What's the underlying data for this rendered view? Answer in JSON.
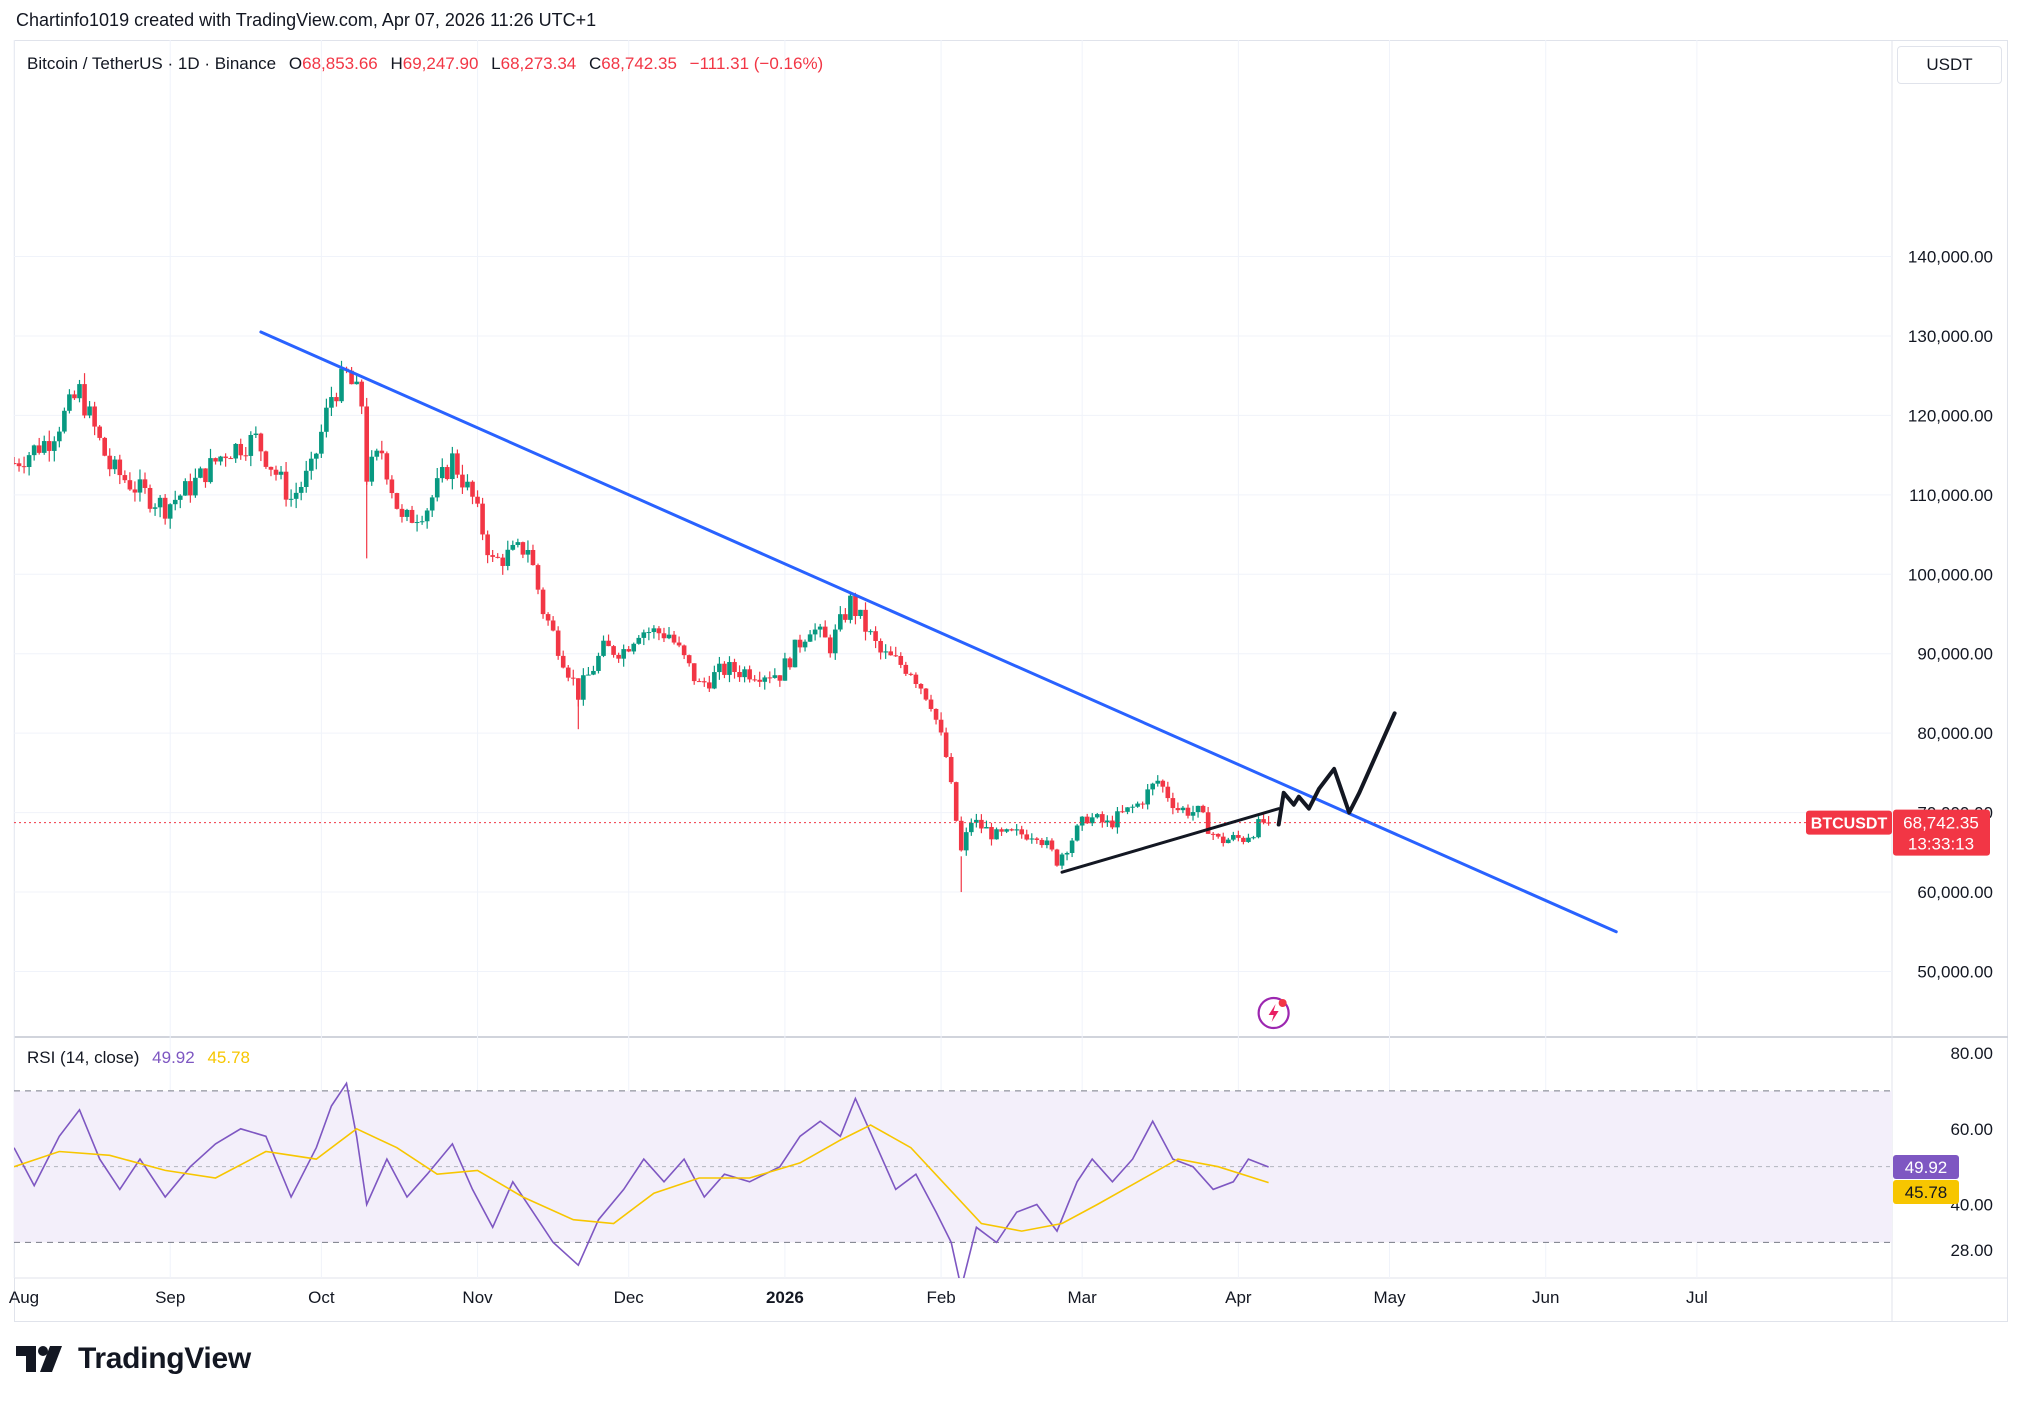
{
  "header": {
    "credit": "Chartinfo1019 created with TradingView.com, Apr 07, 2026 11:26 UTC+1"
  },
  "legend": {
    "symbol": "Bitcoin / TetherUS · 1D · Binance",
    "open_label": "O",
    "open": "68,853.66",
    "high_label": "H",
    "high": "69,247.90",
    "low_label": "L",
    "low": "68,273.34",
    "close_label": "C",
    "close": "68,742.35",
    "change": "−111.31 (−0.16%)"
  },
  "currency_button": "USDT",
  "rsi_legend": {
    "name": "RSI (14, close)",
    "rsi": "49.92",
    "ma": "45.78"
  },
  "badges": {
    "ticker": "BTCUSDT",
    "price": "68,742.35",
    "countdown": "13:33:13",
    "rsi": "49.92",
    "rsi_ma": "45.78"
  },
  "brand": "TradingView",
  "colors": {
    "up": "#089981",
    "down": "#f23645",
    "trendline": "#2962ff",
    "rsi": "#7e57c2",
    "rsi_ma": "#f7c600",
    "rsi_band": "#f3effa"
  },
  "icons": {
    "flash": "flash-icon",
    "brand_logo": "tradingview-logo-icon"
  },
  "chart_data": [
    {
      "type": "candlestick",
      "symbol": "BTCUSDT",
      "interval": "1D",
      "y_axis": {
        "ticks": [
          "50,000.00",
          "60,000.00",
          "70,000.00",
          "80,000.00",
          "90,000.00",
          "100,000.00",
          "110,000.00",
          "120,000.00",
          "130,000.00",
          "140,000.00"
        ],
        "ylim": [
          45000,
          150000
        ],
        "side": "right"
      },
      "x_axis": {
        "ticks": [
          "Aug",
          "Sep",
          "Oct",
          "Nov",
          "Dec",
          "2026",
          "Feb",
          "Mar",
          "Apr",
          "May",
          "Jun",
          "Jul"
        ],
        "range": [
          "2025-08-01",
          "2026-07-31"
        ]
      },
      "price_anchors": [
        [
          "2025-08-01",
          114000
        ],
        [
          "2025-08-08",
          117000
        ],
        [
          "2025-08-14",
          123000
        ],
        [
          "2025-08-20",
          113500
        ],
        [
          "2025-08-26",
          110500
        ],
        [
          "2025-08-31",
          108500
        ],
        [
          "2025-09-05",
          111000
        ],
        [
          "2025-09-12",
          115500
        ],
        [
          "2025-09-18",
          117000
        ],
        [
          "2025-09-25",
          109500
        ],
        [
          "2025-09-29",
          113000
        ],
        [
          "2025-10-03",
          122500
        ],
        [
          "2025-10-06",
          125000
        ],
        [
          "2025-10-09",
          121500
        ],
        [
          "2025-10-10",
          112500
        ],
        [
          "2025-10-13",
          115500
        ],
        [
          "2025-10-17",
          106500
        ],
        [
          "2025-10-22",
          108500
        ],
        [
          "2025-10-27",
          114500
        ],
        [
          "2025-10-31",
          109500
        ],
        [
          "2025-11-04",
          101500
        ],
        [
          "2025-11-11",
          103500
        ],
        [
          "2025-11-14",
          95500
        ],
        [
          "2025-11-21",
          85000
        ],
        [
          "2025-11-26",
          90500
        ],
        [
          "2025-11-30",
          90500
        ],
        [
          "2025-12-03",
          93000
        ],
        [
          "2025-12-09",
          92500
        ],
        [
          "2025-12-15",
          86000
        ],
        [
          "2025-12-20",
          88000
        ],
        [
          "2025-12-31",
          87500
        ],
        [
          "2026-01-06",
          93500
        ],
        [
          "2026-01-10",
          91000
        ],
        [
          "2026-01-14",
          96500
        ],
        [
          "2026-01-20",
          90000
        ],
        [
          "2026-01-26",
          88000
        ],
        [
          "2026-01-30",
          84000
        ],
        [
          "2026-02-02",
          77000
        ],
        [
          "2026-02-05",
          65000
        ],
        [
          "2026-02-07",
          69000
        ],
        [
          "2026-02-12",
          67000
        ],
        [
          "2026-02-20",
          67500
        ],
        [
          "2026-02-24",
          64000
        ],
        [
          "2026-03-02",
          69500
        ],
        [
          "2026-03-06",
          68500
        ],
        [
          "2026-03-12",
          71000
        ],
        [
          "2026-03-16",
          74000
        ],
        [
          "2026-03-20",
          70500
        ],
        [
          "2026-03-24",
          70000
        ],
        [
          "2026-03-28",
          66500
        ],
        [
          "2026-04-02",
          66800
        ],
        [
          "2026-04-06",
          68800
        ],
        [
          "2026-04-07",
          68742.35
        ]
      ],
      "last_close": 68742.35,
      "annotations": [
        {
          "kind": "trendline",
          "color": "#2962ff",
          "from": [
            "2025-09-19",
            130500
          ],
          "to": [
            "2026-06-15",
            55000
          ]
        },
        {
          "kind": "trendline",
          "color": "#131722",
          "from": [
            "2026-02-25",
            62500
          ],
          "to": [
            "2026-04-09",
            70500
          ]
        },
        {
          "kind": "freehand",
          "color": "#131722",
          "points": [
            [
              "2026-04-09",
              68500
            ],
            [
              "2026-04-10",
              72500
            ],
            [
              "2026-04-12",
              71000
            ],
            [
              "2026-04-13",
              72000
            ],
            [
              "2026-04-15",
              70500
            ],
            [
              "2026-04-17",
              73000
            ],
            [
              "2026-04-20",
              75500
            ],
            [
              "2026-04-23",
              70000
            ],
            [
              "2026-04-25",
              72500
            ],
            [
              "2026-05-02",
              82500
            ]
          ]
        }
      ]
    },
    {
      "type": "line",
      "name": "RSI (14, close)",
      "y_axis": {
        "ticks": [
          "28.00",
          "40.00",
          "60.00",
          "80.00"
        ],
        "ylim": [
          28,
          80
        ],
        "bands": [
          30,
          70
        ]
      },
      "series": [
        {
          "name": "RSI",
          "color": "#7e57c2",
          "last": 49.92,
          "points": [
            [
              "2025-08-01",
              55
            ],
            [
              "2025-08-05",
              45
            ],
            [
              "2025-08-10",
              58
            ],
            [
              "2025-08-14",
              65
            ],
            [
              "2025-08-18",
              52
            ],
            [
              "2025-08-22",
              44
            ],
            [
              "2025-08-26",
              52
            ],
            [
              "2025-08-31",
              42
            ],
            [
              "2025-09-05",
              50
            ],
            [
              "2025-09-10",
              56
            ],
            [
              "2025-09-15",
              60
            ],
            [
              "2025-09-20",
              58
            ],
            [
              "2025-09-25",
              42
            ],
            [
              "2025-09-30",
              55
            ],
            [
              "2025-10-03",
              66
            ],
            [
              "2025-10-06",
              72
            ],
            [
              "2025-10-08",
              58
            ],
            [
              "2025-10-10",
              40
            ],
            [
              "2025-10-14",
              52
            ],
            [
              "2025-10-18",
              42
            ],
            [
              "2025-10-22",
              48
            ],
            [
              "2025-10-27",
              56
            ],
            [
              "2025-10-31",
              44
            ],
            [
              "2025-11-04",
              34
            ],
            [
              "2025-11-08",
              46
            ],
            [
              "2025-11-12",
              38
            ],
            [
              "2025-11-16",
              30
            ],
            [
              "2025-11-21",
              24
            ],
            [
              "2025-11-25",
              36
            ],
            [
              "2025-11-30",
              44
            ],
            [
              "2025-12-04",
              52
            ],
            [
              "2025-12-08",
              46
            ],
            [
              "2025-12-12",
              52
            ],
            [
              "2025-12-16",
              42
            ],
            [
              "2025-12-20",
              48
            ],
            [
              "2025-12-25",
              46
            ],
            [
              "2025-12-31",
              50
            ],
            [
              "2026-01-04",
              58
            ],
            [
              "2026-01-08",
              62
            ],
            [
              "2026-01-12",
              58
            ],
            [
              "2026-01-15",
              68
            ],
            [
              "2026-01-19",
              56
            ],
            [
              "2026-01-23",
              44
            ],
            [
              "2026-01-27",
              48
            ],
            [
              "2026-01-31",
              38
            ],
            [
              "2026-02-03",
              30
            ],
            [
              "2026-02-05",
              18
            ],
            [
              "2026-02-08",
              34
            ],
            [
              "2026-02-12",
              30
            ],
            [
              "2026-02-16",
              38
            ],
            [
              "2026-02-20",
              40
            ],
            [
              "2026-02-24",
              33
            ],
            [
              "2026-02-28",
              46
            ],
            [
              "2026-03-03",
              52
            ],
            [
              "2026-03-07",
              46
            ],
            [
              "2026-03-11",
              52
            ],
            [
              "2026-03-15",
              62
            ],
            [
              "2026-03-19",
              52
            ],
            [
              "2026-03-23",
              50
            ],
            [
              "2026-03-27",
              44
            ],
            [
              "2026-03-31",
              46
            ],
            [
              "2026-04-03",
              52
            ],
            [
              "2026-04-07",
              49.92
            ]
          ]
        },
        {
          "name": "RSI-based MA",
          "color": "#f7c600",
          "last": 45.78,
          "points": [
            [
              "2025-08-01",
              50
            ],
            [
              "2025-08-10",
              54
            ],
            [
              "2025-08-20",
              53
            ],
            [
              "2025-08-31",
              49
            ],
            [
              "2025-09-10",
              47
            ],
            [
              "2025-09-20",
              54
            ],
            [
              "2025-09-30",
              52
            ],
            [
              "2025-10-08",
              60
            ],
            [
              "2025-10-16",
              55
            ],
            [
              "2025-10-24",
              48
            ],
            [
              "2025-11-01",
              49
            ],
            [
              "2025-11-10",
              42
            ],
            [
              "2025-11-20",
              36
            ],
            [
              "2025-11-28",
              35
            ],
            [
              "2025-12-06",
              43
            ],
            [
              "2025-12-15",
              47
            ],
            [
              "2025-12-25",
              47
            ],
            [
              "2026-01-04",
              51
            ],
            [
              "2026-01-12",
              57
            ],
            [
              "2026-01-18",
              61
            ],
            [
              "2026-01-26",
              55
            ],
            [
              "2026-02-02",
              45
            ],
            [
              "2026-02-09",
              35
            ],
            [
              "2026-02-17",
              33
            ],
            [
              "2026-02-25",
              35
            ],
            [
              "2026-03-04",
              40
            ],
            [
              "2026-03-12",
              46
            ],
            [
              "2026-03-20",
              52
            ],
            [
              "2026-03-28",
              50
            ],
            [
              "2026-04-07",
              45.78
            ]
          ]
        }
      ]
    }
  ]
}
